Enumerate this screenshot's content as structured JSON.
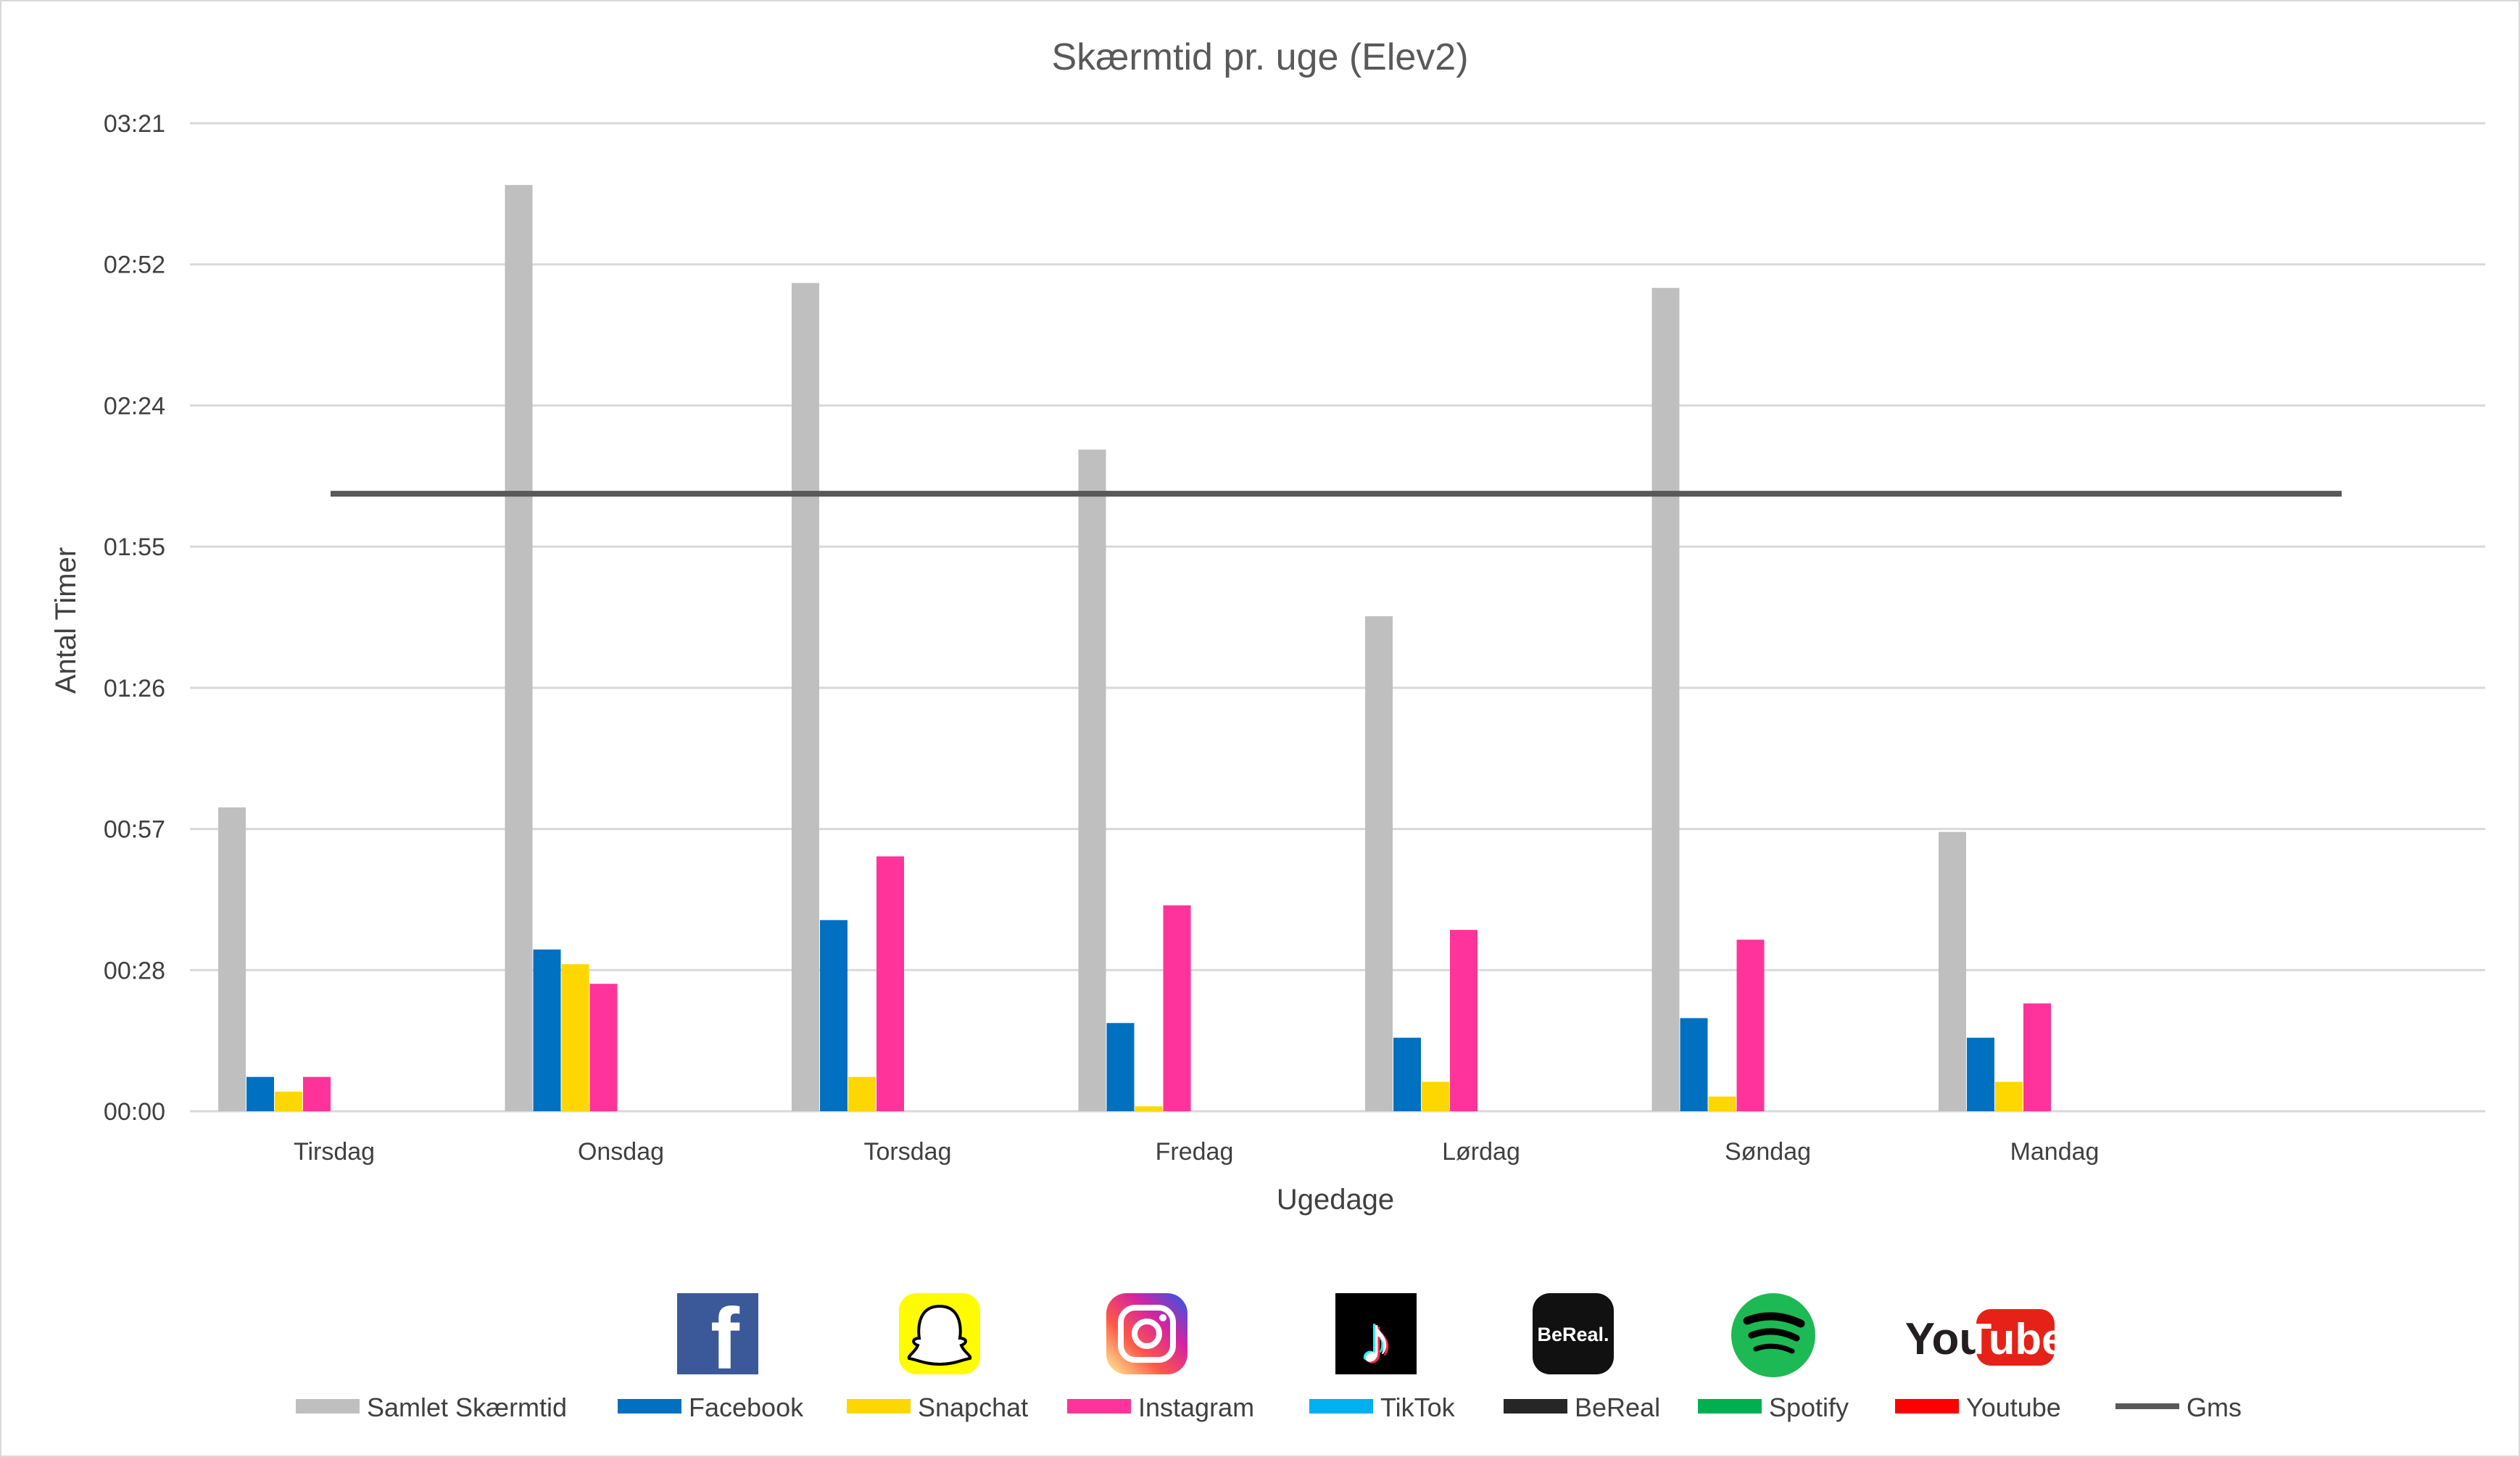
{
  "chart_data": {
    "type": "bar",
    "title": "Skærmtid pr. uge (Elev2)",
    "xlabel": "Ugedage",
    "ylabel": "Antal Timer",
    "y_unit": "minutes",
    "ylim": [
      0,
      201.6
    ],
    "y_ticks": [
      "00:00",
      "00:28",
      "00:57",
      "01:26",
      "01:55",
      "02:24",
      "02:52",
      "03:21"
    ],
    "y_tick_values": [
      0,
      28.8,
      57.6,
      86.4,
      115.2,
      144,
      172.8,
      201.6
    ],
    "grid": true,
    "legend_position": "bottom",
    "categories": [
      "Tirsdag",
      "Onsdag",
      "Torsdag",
      "Fredag",
      "Lørdag",
      "Søndag",
      "Mandag"
    ],
    "series": [
      {
        "name": "Samlet Skærmtid",
        "color": "#bfbfbf",
        "values": [
          62,
          189,
          169,
          135,
          101,
          168,
          57
        ]
      },
      {
        "name": "Facebook",
        "color": "#0070c0",
        "values": [
          7,
          33,
          39,
          18,
          15,
          19,
          15
        ]
      },
      {
        "name": "Snapchat",
        "color": "#ffd700",
        "values": [
          4,
          30,
          7,
          1,
          6,
          3,
          6
        ]
      },
      {
        "name": "Instagram",
        "color": "#ff3399",
        "values": [
          7,
          26,
          52,
          42,
          37,
          35,
          22
        ]
      },
      {
        "name": "TikTok",
        "color": "#00b0f0",
        "values": [
          0,
          0,
          0,
          0,
          0,
          0,
          0
        ]
      },
      {
        "name": "BeReal",
        "color": "#262626",
        "values": [
          0,
          0,
          0,
          0,
          0,
          0,
          0
        ]
      },
      {
        "name": "Spotify",
        "color": "#00b050",
        "values": [
          0,
          0,
          0,
          0,
          0,
          0,
          0
        ]
      },
      {
        "name": "Youtube",
        "color": "#ff0000",
        "values": [
          0,
          0,
          0,
          0,
          0,
          0,
          0
        ]
      }
    ],
    "average_line": {
      "name": "Gms",
      "color": "#595959",
      "value": 126
    }
  },
  "legend_icons": [
    {
      "icon": "facebook-logo-icon",
      "glyph": "f",
      "bg": "#3b5998",
      "fg": "#ffffff"
    },
    {
      "icon": "snapchat-logo-icon",
      "glyph": "",
      "bg": "#fffc00",
      "fg": "#ffffff"
    },
    {
      "icon": "instagram-logo-icon",
      "glyph": "",
      "bg": "#d6249f",
      "fg": "#ffffff"
    },
    {
      "icon": "tiktok-logo-icon",
      "glyph": "♪",
      "bg": "#000000",
      "fg": "#ffffff"
    },
    {
      "icon": "bereal-logo-icon",
      "glyph": "BeReal.",
      "bg": "#111111",
      "fg": "#ffffff"
    },
    {
      "icon": "spotify-logo-icon",
      "glyph": "",
      "bg": "#1db954",
      "fg": "#000000"
    },
    {
      "icon": "youtube-logo-icon",
      "glyph": "YouTube",
      "bg": "#ffffff",
      "fg": "#e62117"
    }
  ]
}
